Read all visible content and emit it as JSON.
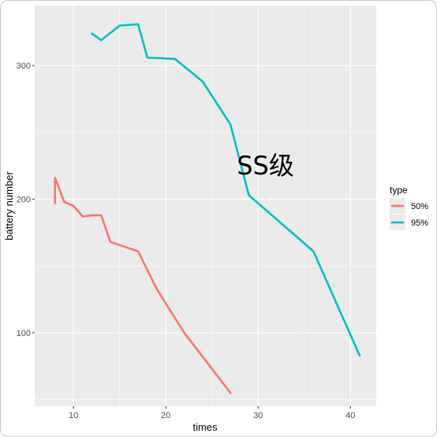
{
  "chart_data": {
    "type": "line",
    "xlabel": "times",
    "ylabel": "battery number",
    "xlim": [
      5.8,
      42.8
    ],
    "ylim": [
      45,
      345
    ],
    "x_ticks": [
      10,
      20,
      30,
      40
    ],
    "y_ticks": [
      100,
      200,
      300
    ],
    "x_tick_labels": [
      "10",
      "20",
      "30",
      "40"
    ],
    "y_tick_labels": [
      "100",
      "200",
      "300"
    ],
    "grid": true,
    "legend": {
      "title": "type",
      "position": "right"
    },
    "annotation": {
      "text": "SS级",
      "x": 30.8,
      "y": 224
    },
    "series": [
      {
        "name": "50%",
        "color": "#F8766D",
        "points": [
          [
            8,
            197
          ],
          [
            8,
            216
          ],
          [
            9,
            198
          ],
          [
            10,
            195
          ],
          [
            11,
            187
          ],
          [
            12,
            188
          ],
          [
            13,
            188
          ],
          [
            14,
            168
          ],
          [
            17,
            161
          ],
          [
            19,
            133
          ],
          [
            22,
            100
          ],
          [
            25,
            73
          ],
          [
            27,
            55
          ]
        ]
      },
      {
        "name": "95%",
        "color": "#00BFC4",
        "points": [
          [
            12,
            324
          ],
          [
            13,
            319
          ],
          [
            15,
            330
          ],
          [
            17,
            331
          ],
          [
            18,
            306
          ],
          [
            21,
            305
          ],
          [
            24,
            288
          ],
          [
            27,
            256
          ],
          [
            29,
            203
          ],
          [
            36,
            161
          ],
          [
            41,
            83
          ]
        ]
      }
    ]
  }
}
